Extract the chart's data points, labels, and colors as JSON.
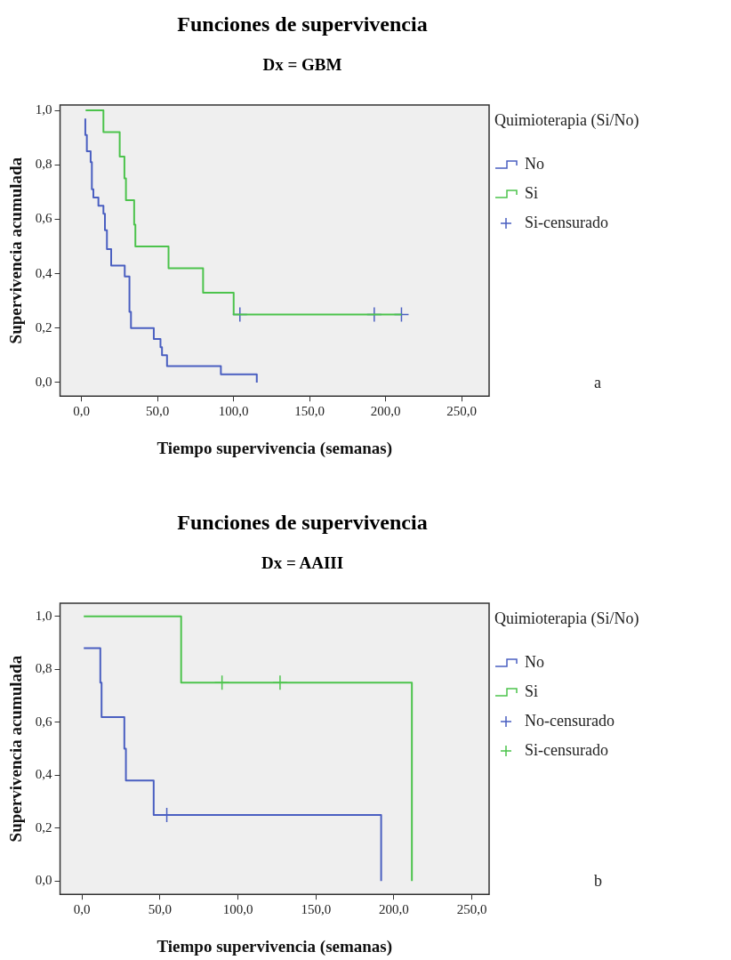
{
  "chart_data": [
    {
      "type": "step",
      "title": "Funciones de supervivencia",
      "subtitle": "Dx = GBM",
      "xlabel": "Tiempo supervivencia (semanas)",
      "ylabel": "Supervivencia acumulada",
      "legend_title": "Quimioterapia (Si/No)",
      "legend": "right",
      "annotations": [
        "a"
      ],
      "xlim": [
        -14,
        268
      ],
      "ylim": [
        -0.05,
        1.02
      ],
      "xticks": [
        {
          "value": 0,
          "label": "0,0"
        },
        {
          "value": 50,
          "label": "50,0"
        },
        {
          "value": 100,
          "label": "100,0"
        },
        {
          "value": 150,
          "label": "150,0"
        },
        {
          "value": 200,
          "label": "200,0"
        },
        {
          "value": 250,
          "label": "250,0"
        }
      ],
      "yticks": [
        {
          "value": 0,
          "label": "0,0"
        },
        {
          "value": 0.2,
          "label": "0,2"
        },
        {
          "value": 0.4,
          "label": "0,4"
        },
        {
          "value": 0.6,
          "label": "0,6"
        },
        {
          "value": 0.8,
          "label": "0,8"
        },
        {
          "value": 1,
          "label": "1,0"
        }
      ],
      "series": [
        {
          "name": "No",
          "type": "step",
          "color": "#4a5fc1",
          "x": [
            2.6,
            2.6,
            3.6,
            6.1,
            6.9,
            7.9,
            11.2,
            14.5,
            15.5,
            16.8,
            19.6,
            28.5,
            31.6,
            32.6,
            47.6,
            52,
            53,
            56.3,
            91.7,
            115.3
          ],
          "values": [
            0.97,
            0.91,
            0.85,
            0.81,
            0.71,
            0.68,
            0.65,
            0.62,
            0.56,
            0.49,
            0.43,
            0.39,
            0.26,
            0.2,
            0.16,
            0.13,
            0.1,
            0.06,
            0.03,
            0.0
          ]
        },
        {
          "name": "Si",
          "type": "step",
          "color": "#4cc34c",
          "x": [
            2.8,
            14.5,
            25.2,
            28.3,
            29.3,
            34.7,
            35.5,
            57.3,
            80,
            100.1,
            210.4
          ],
          "values": [
            1.0,
            0.92,
            0.83,
            0.75,
            0.67,
            0.58,
            0.5,
            0.42,
            0.33,
            0.25,
            0.25
          ]
        },
        {
          "name": "Si-censurado",
          "type": "scatter",
          "marker": "cross",
          "color": "#4a5fc1",
          "x": [
            104.2,
            192.5,
            210.4
          ],
          "values": [
            0.25,
            0.25,
            0.25
          ]
        }
      ]
    },
    {
      "type": "step",
      "title": "Funciones de supervivencia",
      "subtitle": "Dx = AAIII",
      "xlabel": "Tiempo supervivencia (semanas)",
      "ylabel": "Supervivencia acumulada",
      "legend_title": "Quimioterapia (Si/No)",
      "legend": "right",
      "annotations": [
        "b"
      ],
      "xlim": [
        -14,
        261
      ],
      "ylim": [
        -0.05,
        1.05
      ],
      "xticks": [
        {
          "value": 0,
          "label": "0,0"
        },
        {
          "value": 50,
          "label": "50,0"
        },
        {
          "value": 100,
          "label": "100,0"
        },
        {
          "value": 150,
          "label": "150,0"
        },
        {
          "value": 200,
          "label": "200,0"
        },
        {
          "value": 250,
          "label": "250,0"
        }
      ],
      "yticks": [
        {
          "value": 0,
          "label": "0,0"
        },
        {
          "value": 0.2,
          "label": "0,2"
        },
        {
          "value": 0.4,
          "label": "0,4"
        },
        {
          "value": 0.6,
          "label": "0,6"
        },
        {
          "value": 0.8,
          "label": "0,8"
        },
        {
          "value": 1,
          "label": "1,0"
        }
      ],
      "series": [
        {
          "name": "No",
          "type": "step",
          "color": "#4a5fc1",
          "x": [
            1.2,
            11.8,
            12.6,
            27.2,
            28.2,
            46,
            191.8
          ],
          "values": [
            0.88,
            0.75,
            0.62,
            0.5,
            0.38,
            0.25,
            0.0
          ]
        },
        {
          "name": "Si",
          "type": "step",
          "color": "#4cc34c",
          "x": [
            1.2,
            63.6,
            211.5
          ],
          "values": [
            1.0,
            0.75,
            0.0
          ]
        },
        {
          "name": "No-censurado",
          "type": "scatter",
          "marker": "cross",
          "color": "#4a5fc1",
          "x": [
            54.4
          ],
          "values": [
            0.25
          ]
        },
        {
          "name": "Si-censurado",
          "type": "scatter",
          "marker": "cross",
          "color": "#4cc34c",
          "x": [
            89.8,
            127
          ],
          "values": [
            0.75,
            0.75
          ]
        }
      ]
    }
  ]
}
